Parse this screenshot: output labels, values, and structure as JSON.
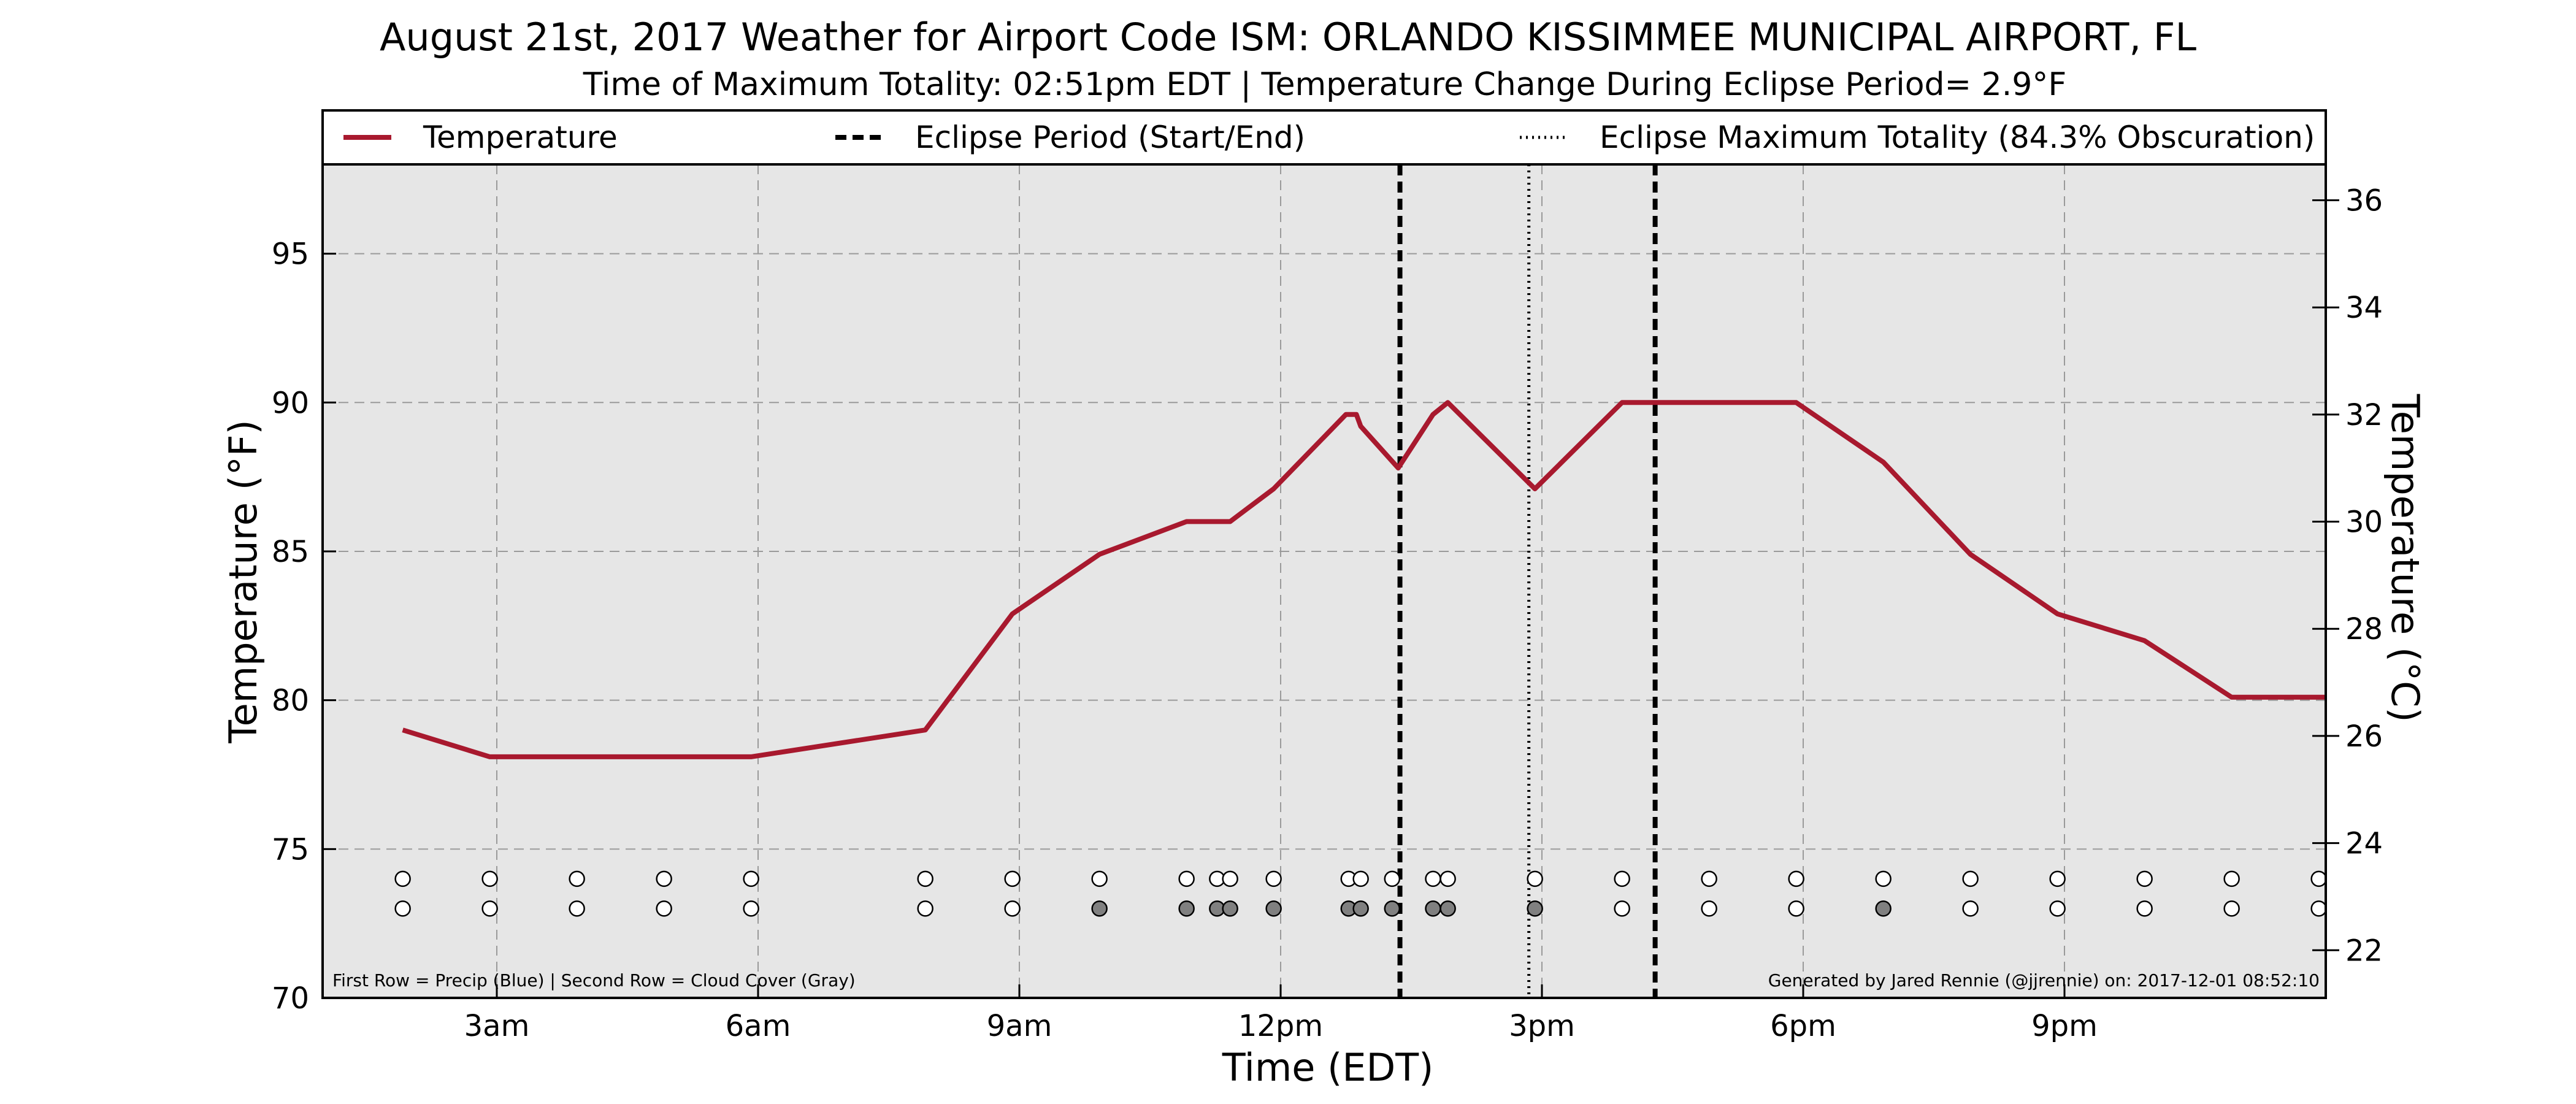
{
  "chart_data": {
    "type": "line",
    "title": "August 21st, 2017 Weather for Airport Code ISM: ORLANDO KISSIMMEE MUNICIPAL AIRPORT, FL",
    "subtitle": "Time of Maximum Totality: 02:51pm EDT | Temperature Change During Eclipse Period= 2.9°F",
    "xlabel": "Time (EDT)",
    "ylabel": "Temperature (°F)",
    "ylabel_right": "Temperature (°C)",
    "xlim": [
      1.0,
      24.0
    ],
    "ylim": [
      70,
      98
    ],
    "ylim_right": [
      21.11,
      36.67
    ],
    "x_ticks": [
      {
        "value": 3,
        "label": "3am"
      },
      {
        "value": 6,
        "label": "6am"
      },
      {
        "value": 9,
        "label": "9am"
      },
      {
        "value": 12,
        "label": "12pm"
      },
      {
        "value": 15,
        "label": "3pm"
      },
      {
        "value": 18,
        "label": "6pm"
      },
      {
        "value": 21,
        "label": "9pm"
      }
    ],
    "y_ticks": [
      70,
      75,
      80,
      85,
      90,
      95
    ],
    "y_ticks_right": [
      22,
      24,
      26,
      28,
      30,
      32,
      34,
      36
    ],
    "grid": true,
    "legend": {
      "placement": "top",
      "entries": [
        {
          "label": "Temperature",
          "style": "solid",
          "color": "#a8192e"
        },
        {
          "label": "Eclipse Period (Start/End)",
          "style": "dashed",
          "color": "#000000"
        },
        {
          "label": "Eclipse Maximum Totality (84.3% Obscuration)",
          "style": "dotted",
          "color": "#000000"
        }
      ]
    },
    "series": [
      {
        "name": "Temperature",
        "color": "#a8192e",
        "points": [
          [
            1.92,
            79.0
          ],
          [
            2.92,
            78.1
          ],
          [
            3.92,
            78.1
          ],
          [
            4.92,
            78.1
          ],
          [
            5.92,
            78.1
          ],
          [
            7.92,
            79.0
          ],
          [
            8.92,
            82.9
          ],
          [
            9.92,
            84.9
          ],
          [
            10.92,
            86.0
          ],
          [
            11.42,
            86.0
          ],
          [
            11.92,
            87.1
          ],
          [
            12.75,
            89.6
          ],
          [
            12.87,
            89.6
          ],
          [
            12.92,
            89.2
          ],
          [
            13.35,
            87.8
          ],
          [
            13.75,
            89.6
          ],
          [
            13.92,
            90.0
          ],
          [
            14.92,
            87.1
          ],
          [
            15.92,
            90.0
          ],
          [
            16.92,
            90.0
          ],
          [
            17.92,
            90.0
          ],
          [
            18.92,
            88.0
          ],
          [
            19.92,
            84.9
          ],
          [
            20.92,
            82.9
          ],
          [
            21.92,
            82.0
          ],
          [
            22.92,
            80.1
          ],
          [
            24.0,
            80.1
          ]
        ]
      }
    ],
    "vertical_lines": [
      {
        "x": 13.37,
        "style": "dashed",
        "label": "Eclipse Period (Start/End)"
      },
      {
        "x": 14.85,
        "style": "dotted",
        "label": "Eclipse Maximum Totality (84.3% Obscuration)"
      },
      {
        "x": 16.3,
        "style": "dashed",
        "label": "Eclipse Period (Start/End)"
      }
    ],
    "markers": {
      "row1": {
        "y": 74,
        "points": [
          {
            "x": 1.92,
            "filled": false
          },
          {
            "x": 2.92,
            "filled": false
          },
          {
            "x": 3.92,
            "filled": false
          },
          {
            "x": 4.92,
            "filled": false
          },
          {
            "x": 5.92,
            "filled": false
          },
          {
            "x": 7.92,
            "filled": false
          },
          {
            "x": 8.92,
            "filled": false
          },
          {
            "x": 9.92,
            "filled": false
          },
          {
            "x": 10.92,
            "filled": false
          },
          {
            "x": 11.27,
            "filled": false
          },
          {
            "x": 11.42,
            "filled": false
          },
          {
            "x": 11.92,
            "filled": false
          },
          {
            "x": 12.78,
            "filled": false
          },
          {
            "x": 12.92,
            "filled": false
          },
          {
            "x": 13.28,
            "filled": false
          },
          {
            "x": 13.75,
            "filled": false
          },
          {
            "x": 13.92,
            "filled": false
          },
          {
            "x": 14.92,
            "filled": false
          },
          {
            "x": 15.92,
            "filled": false
          },
          {
            "x": 16.92,
            "filled": false
          },
          {
            "x": 17.92,
            "filled": false
          },
          {
            "x": 18.92,
            "filled": false
          },
          {
            "x": 19.92,
            "filled": false
          },
          {
            "x": 20.92,
            "filled": false
          },
          {
            "x": 21.92,
            "filled": false
          },
          {
            "x": 22.92,
            "filled": false
          },
          {
            "x": 23.92,
            "filled": false
          }
        ]
      },
      "row2": {
        "y": 73,
        "points": [
          {
            "x": 1.92,
            "filled": false
          },
          {
            "x": 2.92,
            "filled": false
          },
          {
            "x": 3.92,
            "filled": false
          },
          {
            "x": 4.92,
            "filled": false
          },
          {
            "x": 5.92,
            "filled": false
          },
          {
            "x": 7.92,
            "filled": false
          },
          {
            "x": 8.92,
            "filled": false
          },
          {
            "x": 9.92,
            "filled": true
          },
          {
            "x": 10.92,
            "filled": true
          },
          {
            "x": 11.27,
            "filled": true
          },
          {
            "x": 11.42,
            "filled": true
          },
          {
            "x": 11.92,
            "filled": true
          },
          {
            "x": 12.78,
            "filled": true
          },
          {
            "x": 12.92,
            "filled": true
          },
          {
            "x": 13.28,
            "filled": true
          },
          {
            "x": 13.75,
            "filled": true
          },
          {
            "x": 13.92,
            "filled": true
          },
          {
            "x": 14.92,
            "filled": true
          },
          {
            "x": 15.92,
            "filled": false
          },
          {
            "x": 16.92,
            "filled": false
          },
          {
            "x": 17.92,
            "filled": false
          },
          {
            "x": 18.92,
            "filled": true
          },
          {
            "x": 19.92,
            "filled": false
          },
          {
            "x": 20.92,
            "filled": false
          },
          {
            "x": 21.92,
            "filled": false
          },
          {
            "x": 22.92,
            "filled": false
          },
          {
            "x": 23.92,
            "filled": false
          }
        ]
      }
    },
    "annotations": {
      "bottom_left": "First Row = Precip (Blue) | Second Row = Cloud Cover (Gray)",
      "bottom_right": "Generated by Jared Rennie (@jjrennie) on: 2017-12-01 08:52:10"
    },
    "colors": {
      "plot_background": "#e6e6e6",
      "temperature_line": "#a8192e",
      "marker_filled": "#808080",
      "marker_empty": "#ffffff"
    }
  }
}
